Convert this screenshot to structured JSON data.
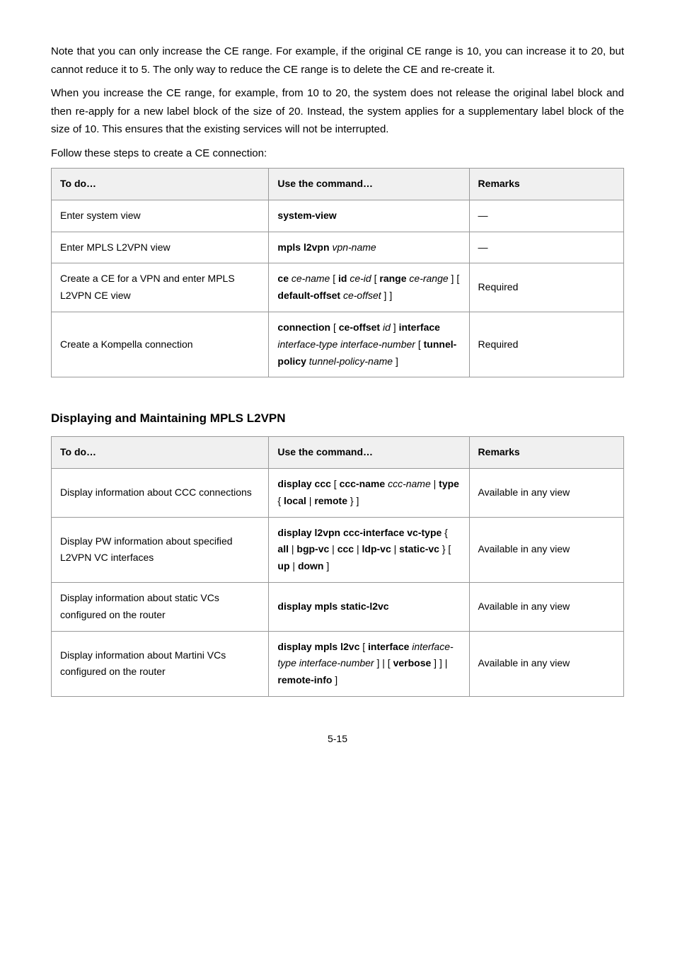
{
  "intro": {
    "p1": "Note that you can only increase the CE range. For example, if the original CE range is 10, you can increase it to 20, but cannot reduce it to 5. The only way to reduce the CE range is to delete the CE and re-create it.",
    "p2": "When you increase the CE range, for example, from 10 to 20, the system does not release the original label block and then re-apply for a new label block of the size of 20. Instead, the system applies for a supplementary label block of the size of 10. This ensures that the existing services will not be interrupted.",
    "p3": "Follow these steps to create a CE connection:"
  },
  "table1": {
    "headers": [
      "To do…",
      "Use the command…",
      "Remarks"
    ],
    "rows": [
      {
        "todo": "Enter system view",
        "cmd_html": "<span class='cmd'>system-view</span>",
        "rem": "—"
      },
      {
        "todo": "Enter MPLS L2VPN view",
        "cmd_html": "<span class='cmd'>mpls l2vpn</span> <span class='arg'>vpn-name</span>",
        "rem": "—"
      },
      {
        "todo": "Create a CE for a VPN and enter MPLS L2VPN CE view",
        "cmd_html": "<span class='cmd'>ce</span> <span class='arg'>ce-name</span> [ <span class='cmd'>id</span> <span class='arg'>ce-id</span> [ <span class='cmd'>range</span> <span class='arg'>ce-range</span> ] [ <span class='cmd'>default-offset</span> <span class='arg'>ce-offset</span> ] ]",
        "rem": "Required"
      },
      {
        "todo": "Create a Kompella connection",
        "cmd_html": "<span class='cmd'>connection</span> [ <span class='cmd'>ce-offset</span> <span class='arg'>id</span> ] <span class='cmd'>interface</span> <span class='arg'>interface-type interface-number</span> [ <span class='cmd'>tunnel-policy</span> <span class='arg'>tunnel-policy-name</span> ]",
        "rem": "Required"
      }
    ]
  },
  "section2": {
    "title": "Displaying and Maintaining MPLS L2VPN"
  },
  "table2": {
    "headers": [
      "To do…",
      "Use the command…",
      "Remarks"
    ],
    "rows": [
      {
        "todo": "Display information about CCC connections",
        "cmd_html": "<span class='cmd'>display ccc</span> [ <span class='cmd'>ccc-name</span> <span class='arg'>ccc-name</span> | <span class='cmd'>type</span> { <span class='cmd'>local</span> | <span class='cmd'>remote</span> } ]",
        "rem": "Available in any view"
      },
      {
        "todo": "Display PW information about specified L2VPN VC interfaces",
        "cmd_html": "<span class='cmd'>display l2vpn ccc-interface vc-type</span> { <span class='cmd'>all</span> | <span class='cmd'>bgp-vc</span> | <span class='cmd'>ccc</span> | <span class='cmd'>ldp-vc</span> | <span class='cmd'>static-vc</span> } [ <span class='cmd'>up</span> | <span class='cmd'>down</span> ]",
        "rem": "Available in any view"
      },
      {
        "todo": "Display information about static VCs configured on the router",
        "cmd_html": "<span class='cmd'>display mpls static-l2vc</span>",
        "rem": "Available in any view"
      },
      {
        "todo": "Display information about Martini VCs configured on the router",
        "cmd_html": "<span class='cmd'>display mpls l2vc</span> [ <span class='cmd'>interface</span> <span class='arg'>interface-type interface-number</span> ] | [ <span class='cmd'>verbose</span> ] ] | <span class='cmd'>remote-info</span> ]",
        "rem": "Available in any view"
      }
    ]
  },
  "footer": {
    "page": "5-15"
  },
  "style": {
    "colors": {
      "border": "#999999",
      "header_bg": "#f0f0f0",
      "text": "#000000",
      "bg": "#ffffff"
    },
    "font_sizes": {
      "body": 15,
      "table": 14,
      "heading": 17,
      "footer": 14
    }
  }
}
